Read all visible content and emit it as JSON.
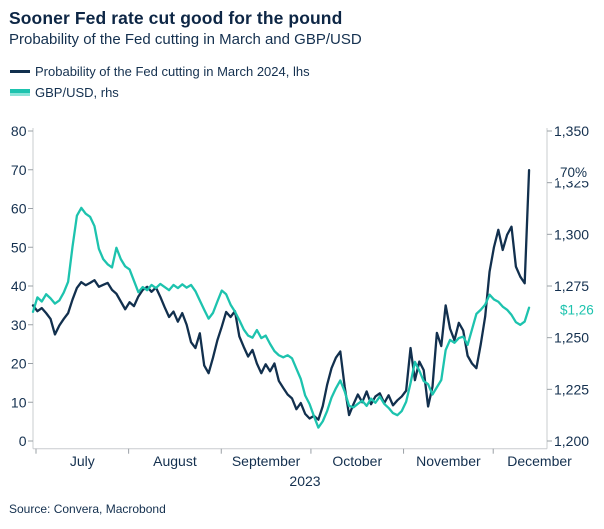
{
  "header": {
    "title": "Sooner Fed rate cut good for the pound",
    "subtitle": "Probability of the Fed cutting in March and GBP/USD"
  },
  "legend": {
    "items": [
      {
        "label": "Probability of the Fed cutting in March 2024, lhs",
        "color": "#12304e"
      },
      {
        "label": "GBP/USD, rhs",
        "color": "#1dc3ae",
        "color_light": "#8be4d8"
      }
    ]
  },
  "footer": {
    "source": "Source: Convera, Macrobond"
  },
  "colors": {
    "navy": "#12304e",
    "teal": "#1dc3ae",
    "teal_light": "#8be4d8",
    "text": "#14304f",
    "axis_line": "#c9cccf",
    "tick_mark": "#9aa0a6",
    "background": "#ffffff"
  },
  "chart_data": {
    "type": "line",
    "title": "Sooner Fed rate cut good for the pound",
    "subtitle": "Probability of the Fed cutting in March and GBP/USD",
    "x_axis": {
      "unit": "date",
      "start_date": "2023-06-30",
      "domain_days": 172,
      "series_end_day": 166,
      "year_label": "2023",
      "months": [
        {
          "label": "July",
          "start_day": 1,
          "end_day": 32
        },
        {
          "label": "August",
          "start_day": 32,
          "end_day": 63
        },
        {
          "label": "September",
          "start_day": 63,
          "end_day": 93
        },
        {
          "label": "October",
          "start_day": 93,
          "end_day": 124
        },
        {
          "label": "November",
          "start_day": 124,
          "end_day": 154
        },
        {
          "label": "December",
          "start_day": 154,
          "end_day": 185
        }
      ]
    },
    "left_axis": {
      "side": "left",
      "range": [
        0,
        80
      ],
      "ticks": [
        0,
        10,
        20,
        30,
        40,
        50,
        60,
        70,
        80
      ]
    },
    "right_axis": {
      "side": "right",
      "range": [
        1200,
        1350
      ],
      "tick_values": [
        1200,
        1225,
        1250,
        1275,
        1300,
        1325,
        1350
      ],
      "tick_labels": [
        "1,200",
        "1,225",
        "1,250",
        "1,275",
        "1,300",
        "1,325",
        "1,350"
      ]
    },
    "grid": false,
    "legend_position": "top-left",
    "series": [
      {
        "name": "Probability of the Fed cutting in March 2024, lhs",
        "axis": "left",
        "color": "#12304e",
        "values": [
          35.0,
          33.5,
          34.3,
          33.0,
          31.5,
          27.5,
          29.8,
          31.5,
          33.0,
          36.5,
          39.5,
          41.0,
          40.2,
          40.8,
          41.5,
          39.8,
          40.3,
          40.8,
          39.0,
          38.0,
          36.0,
          34.0,
          35.8,
          34.8,
          37.3,
          39.0,
          39.8,
          38.5,
          39.6,
          37.2,
          34.5,
          32.0,
          33.4,
          30.8,
          33.0,
          30.0,
          25.5,
          24.0,
          27.8,
          19.5,
          17.5,
          21.5,
          26.0,
          29.5,
          33.3,
          32.0,
          33.5,
          27.0,
          24.3,
          21.8,
          23.5,
          20.0,
          17.5,
          19.8,
          18.0,
          20.0,
          15.5,
          13.7,
          12.0,
          11.0,
          8.2,
          9.8,
          7.0,
          5.8,
          6.5,
          5.5,
          9.0,
          14.5,
          18.8,
          21.5,
          23.1,
          14.0,
          6.7,
          9.5,
          12.0,
          10.0,
          12.8,
          9.5,
          11.5,
          12.3,
          9.8,
          11.8,
          9.2,
          10.5,
          11.5,
          13.0,
          24.0,
          15.7,
          20.5,
          18.3,
          8.9,
          14.0,
          27.9,
          24.5,
          35.0,
          29.0,
          26.0,
          30.5,
          28.5,
          22.0,
          20.0,
          18.8,
          25.0,
          32.1,
          43.7,
          50.0,
          54.5,
          49.3,
          53.2,
          55.3,
          45.0,
          42.4,
          40.7,
          69.9
        ]
      },
      {
        "name": "GBP/USD, rhs",
        "axis": "right",
        "color": "#1dc3ae",
        "values": [
          1262.5,
          1269.5,
          1267.5,
          1271.0,
          1269.0,
          1266.5,
          1268.0,
          1271.8,
          1277.0,
          1294.0,
          1309.0,
          1312.8,
          1310.0,
          1308.5,
          1304.0,
          1293.0,
          1288.0,
          1285.5,
          1284.0,
          1293.5,
          1288.0,
          1284.5,
          1283.0,
          1277.5,
          1272.0,
          1274.5,
          1273.0,
          1275.5,
          1274.0,
          1276.0,
          1274.5,
          1273.0,
          1275.5,
          1274.0,
          1275.8,
          1274.2,
          1275.5,
          1272.5,
          1268.0,
          1263.5,
          1259.2,
          1262.0,
          1267.5,
          1272.8,
          1271.0,
          1266.0,
          1262.6,
          1258.5,
          1254.0,
          1251.0,
          1250.0,
          1253.7,
          1249.8,
          1251.0,
          1247.0,
          1243.5,
          1241.5,
          1240.5,
          1241.5,
          1240.0,
          1235.0,
          1230.0,
          1222.0,
          1217.9,
          1212.0,
          1206.5,
          1209.5,
          1214.5,
          1221.0,
          1225.5,
          1229.3,
          1224.0,
          1217.0,
          1216.3,
          1218.0,
          1219.5,
          1217.0,
          1220.5,
          1218.5,
          1221.5,
          1218.0,
          1216.0,
          1213.5,
          1212.5,
          1214.5,
          1219.0,
          1228.0,
          1238.3,
          1234.0,
          1229.0,
          1227.5,
          1222.5,
          1226.0,
          1229.5,
          1244.0,
          1248.9,
          1247.5,
          1249.8,
          1250.5,
          1246.5,
          1254.0,
          1261.5,
          1263.5,
          1266.0,
          1270.8,
          1268.5,
          1267.4,
          1265.0,
          1263.5,
          1261.0,
          1257.5,
          1256.2,
          1257.8,
          1264.5
        ]
      }
    ],
    "annotations": [
      {
        "text": "70%",
        "series": 0,
        "color": "#12304e"
      },
      {
        "text": "$1,26",
        "series": 1,
        "color": "#1dc3ae"
      }
    ]
  }
}
